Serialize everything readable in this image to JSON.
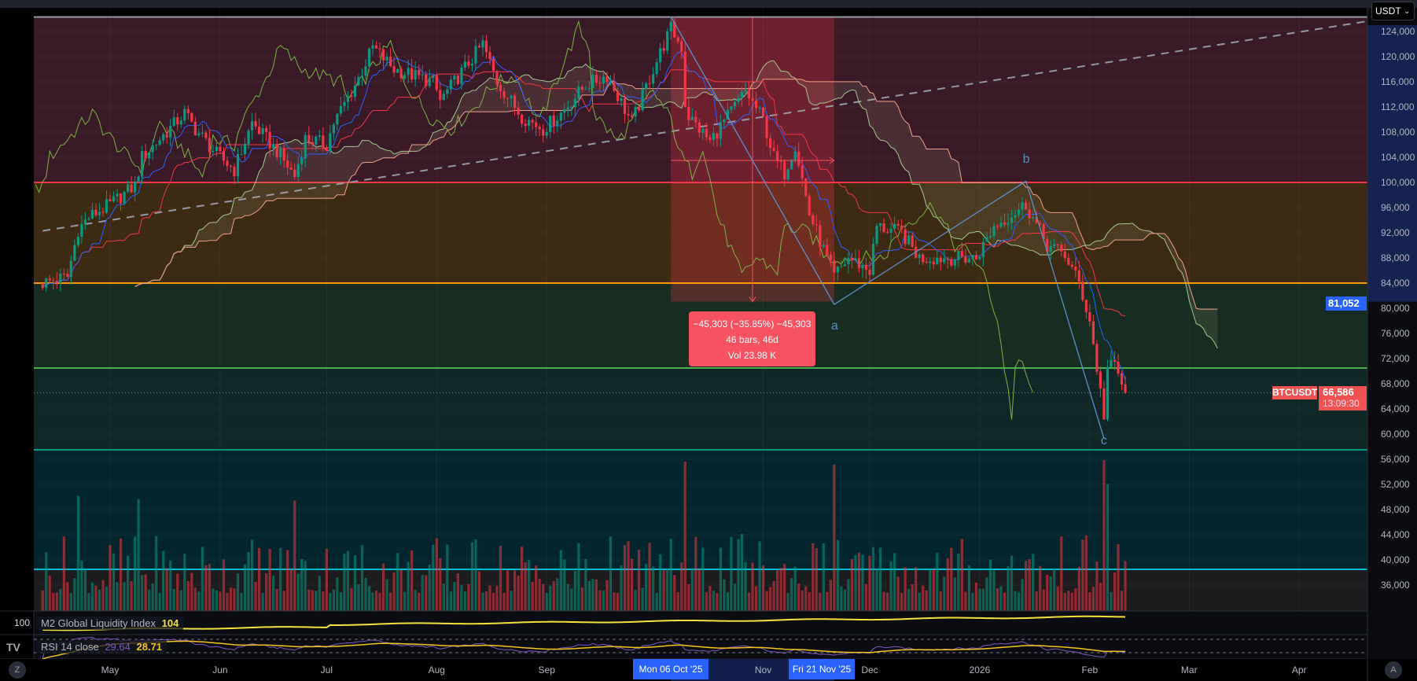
{
  "symbol": "BTCUSDT",
  "currency_button": "USDT",
  "current_price": "66,586",
  "countdown": "13:09:30",
  "measure_price_label": "81,052",
  "measure_tooltip": {
    "line1": "−45,303 (−35.85%) −45,303",
    "line2": "46 bars, 46d",
    "line3": "Vol 23.98 K"
  },
  "price_ticks": [
    "124,000",
    "120,000",
    "116,000",
    "112,000",
    "108,000",
    "104,000",
    "100,000",
    "96,000",
    "92,000",
    "88,000",
    "84,000",
    "80,000",
    "76,000",
    "72,000",
    "68,000",
    "64,000",
    "60,000",
    "56,000",
    "52,000",
    "48,000",
    "44,000",
    "40,000",
    "36,000"
  ],
  "price_tick_values": [
    124000,
    120000,
    116000,
    112000,
    108000,
    104000,
    100000,
    96000,
    92000,
    88000,
    84000,
    80000,
    76000,
    72000,
    68000,
    64000,
    60000,
    56000,
    52000,
    48000,
    44000,
    40000,
    36000
  ],
  "time_ticks": [
    {
      "label": "May",
      "date": "2025-05-01"
    },
    {
      "label": "Jun",
      "date": "2025-06-01"
    },
    {
      "label": "Jul",
      "date": "2025-07-01"
    },
    {
      "label": "Aug",
      "date": "2025-08-01"
    },
    {
      "label": "Sep",
      "date": "2025-09-01"
    },
    {
      "label": "Nov",
      "date": "2025-11-01"
    },
    {
      "label": "Dec",
      "date": "2025-12-01"
    },
    {
      "label": "2026",
      "date": "2026-01-01"
    },
    {
      "label": "Feb",
      "date": "2026-02-01"
    },
    {
      "label": "Mar",
      "date": "2026-03-01"
    },
    {
      "label": "Apr",
      "date": "2026-04-01"
    }
  ],
  "range_start_label": "Mon 06 Oct '25",
  "range_end_label": "Fri 21 Nov '25",
  "range": {
    "start": "2025-10-06",
    "end": "2025-11-21",
    "from_price": 126355,
    "to_price": 81052
  },
  "levels": [
    {
      "price": 126300,
      "color": "#9598a1"
    },
    {
      "price": 100000,
      "color": "#f23645"
    },
    {
      "price": 84000,
      "color": "#ff9800"
    },
    {
      "price": 70500,
      "color": "#4caf50"
    },
    {
      "price": 57500,
      "color": "#089981"
    },
    {
      "price": 38500,
      "color": "#00bcd4"
    }
  ],
  "zones": [
    {
      "top": 126300,
      "bottom": 100000,
      "color": "#3b1a28"
    },
    {
      "top": 100000,
      "bottom": 84000,
      "color": "#3d2a13"
    },
    {
      "top": 84000,
      "bottom": 70500,
      "color": "#172d21"
    },
    {
      "top": 70500,
      "bottom": 57500,
      "color": "#0f2727"
    },
    {
      "top": 57500,
      "bottom": 38500,
      "color": "#03262e"
    },
    {
      "top": 38500,
      "bottom": 30000,
      "color": "#1c1c1e"
    }
  ],
  "trendline": {
    "from": {
      "date": "2025-04-12",
      "price": 92300
    },
    "to": {
      "date": "2026-04-21",
      "price": 125700
    },
    "color": "#9598a1"
  },
  "waves": {
    "labels": [
      {
        "text": "a",
        "date": "2025-11-21",
        "price": 77000
      },
      {
        "text": "b",
        "date": "2026-01-14",
        "price": 103500
      },
      {
        "text": "c",
        "date": "2026-02-05",
        "price": 58700
      }
    ],
    "points": [
      {
        "date": "2025-10-06",
        "price": 126355
      },
      {
        "date": "2025-11-21",
        "price": 80600
      },
      {
        "date": "2026-01-14",
        "price": 100200
      },
      {
        "date": "2026-02-05",
        "price": 59300
      }
    ],
    "color": "#5b8fc7"
  },
  "colors": {
    "up": "#089981",
    "down": "#f23645",
    "tenkan": "#2962ff",
    "kijun": "#f23645",
    "chikou": "#7cb342",
    "spanA": "#a5c88f",
    "spanB": "#f0a08c",
    "m2": "#f5e13b",
    "rsi": "#7e57c2",
    "rsi_ma": "#f5c518",
    "accent": "#2962ff"
  },
  "chart_data": {
    "type": "candlestick",
    "start": "2025-04-12",
    "end": "2026-02-11",
    "close_anchors": [
      [
        "2025-04-12",
        84000
      ],
      [
        "2025-04-19",
        85000
      ],
      [
        "2025-04-22",
        92500
      ],
      [
        "2025-04-25",
        94500
      ],
      [
        "2025-05-01",
        96500
      ],
      [
        "2025-05-08",
        99500
      ],
      [
        "2025-05-10",
        104000
      ],
      [
        "2025-05-22",
        111000
      ],
      [
        "2025-05-25",
        108500
      ],
      [
        "2025-05-31",
        104500
      ],
      [
        "2025-06-05",
        102000
      ],
      [
        "2025-06-10",
        109500
      ],
      [
        "2025-06-17",
        105000
      ],
      [
        "2025-06-22",
        101000
      ],
      [
        "2025-06-25",
        107000
      ],
      [
        "2025-07-01",
        106000
      ],
      [
        "2025-07-03",
        109500
      ],
      [
        "2025-07-10",
        116500
      ],
      [
        "2025-07-14",
        121500
      ],
      [
        "2025-07-20",
        118000
      ],
      [
        "2025-07-31",
        116000
      ],
      [
        "2025-08-02",
        113000
      ],
      [
        "2025-08-10",
        119000
      ],
      [
        "2025-08-14",
        122000
      ],
      [
        "2025-08-18",
        116000
      ],
      [
        "2025-08-25",
        110500
      ],
      [
        "2025-08-31",
        108500
      ],
      [
        "2025-09-05",
        111000
      ],
      [
        "2025-09-12",
        115500
      ],
      [
        "2025-09-18",
        117000
      ],
      [
        "2025-09-25",
        109500
      ],
      [
        "2025-10-01",
        118000
      ],
      [
        "2025-10-06",
        124500
      ],
      [
        "2025-10-09",
        121500
      ],
      [
        "2025-10-10",
        112500
      ],
      [
        "2025-10-11",
        110500
      ],
      [
        "2025-10-17",
        106500
      ],
      [
        "2025-10-27",
        114500
      ],
      [
        "2025-11-01",
        110000
      ],
      [
        "2025-11-04",
        104000
      ],
      [
        "2025-11-07",
        101500
      ],
      [
        "2025-11-10",
        106000
      ],
      [
        "2025-11-14",
        95000
      ],
      [
        "2025-11-21",
        85000
      ],
      [
        "2025-11-25",
        88000
      ],
      [
        "2025-12-01",
        86000
      ],
      [
        "2025-12-03",
        93000
      ],
      [
        "2025-12-10",
        92000
      ],
      [
        "2025-12-15",
        88000
      ],
      [
        "2025-12-20",
        88000
      ],
      [
        "2025-12-31",
        88000
      ],
      [
        "2026-01-05",
        93000
      ],
      [
        "2026-01-14",
        96500
      ],
      [
        "2026-01-20",
        90000
      ],
      [
        "2026-01-25",
        88500
      ],
      [
        "2026-01-29",
        84000
      ],
      [
        "2026-02-01",
        78000
      ],
      [
        "2026-02-05",
        63000
      ],
      [
        "2026-02-06",
        70500
      ],
      [
        "2026-02-08",
        71000
      ],
      [
        "2026-02-11",
        66586
      ]
    ],
    "volume_spikes": [
      [
        "2025-10-10",
        1.0
      ],
      [
        "2025-11-21",
        0.98
      ],
      [
        "2026-02-05",
        1.01
      ],
      [
        "2026-02-06",
        0.85
      ],
      [
        "2025-04-22",
        0.77
      ],
      [
        "2025-05-09",
        0.75
      ],
      [
        "2025-06-22",
        0.74
      ]
    ],
    "indicators": {
      "m2": {
        "name": "M2 Global Liquidity Index",
        "value": "104",
        "axis_label": "100"
      },
      "rsi": {
        "name": "RSI 14 close",
        "value": "29.64",
        "ma_value": "28.71"
      }
    },
    "price_axis": "right",
    "ylim": [
      34000,
      127000
    ]
  }
}
